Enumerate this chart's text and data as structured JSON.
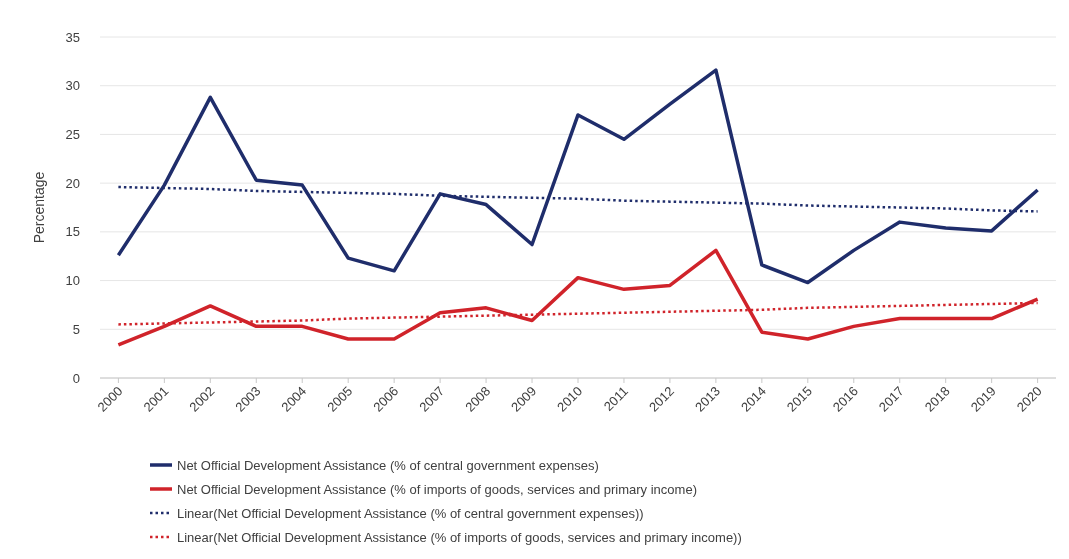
{
  "chart_data": {
    "type": "line",
    "ylabel": "Percentage",
    "x": [
      2000,
      2001,
      2002,
      2003,
      2004,
      2005,
      2006,
      2007,
      2008,
      2009,
      2010,
      2011,
      2012,
      2013,
      2014,
      2015,
      2016,
      2017,
      2018,
      2019,
      2020
    ],
    "xlim": [
      1999.6,
      2020.4
    ],
    "xticks": [
      2000,
      2001,
      2002,
      2003,
      2004,
      2005,
      2006,
      2007,
      2008,
      2009,
      2010,
      2011,
      2012,
      2013,
      2014,
      2015,
      2016,
      2017,
      2018,
      2019,
      2020
    ],
    "ylim": [
      0,
      35
    ],
    "yticks": [
      0,
      5,
      10,
      15,
      20,
      25,
      30,
      35
    ],
    "grid": "y",
    "legend": "bottom",
    "marker": "none",
    "series": [
      {
        "name": "Net Official Development Assistance (% of central government expenses)",
        "color": "#1f2d6b",
        "line_style": "solid",
        "values": [
          12.6,
          19.8,
          28.8,
          20.3,
          19.8,
          12.3,
          11.0,
          18.9,
          17.8,
          13.7,
          27.0,
          24.5,
          28.1,
          31.6,
          11.6,
          9.8,
          13.1,
          16.0,
          15.4,
          15.1,
          19.3
        ]
      },
      {
        "name": "Net Official Development Assistance (% of imports of goods, services and primary income)",
        "color": "#d0232a",
        "line_style": "solid",
        "values": [
          3.4,
          5.3,
          7.4,
          5.3,
          5.3,
          4.0,
          4.0,
          6.7,
          7.2,
          5.9,
          10.3,
          9.1,
          9.5,
          13.1,
          4.7,
          4.0,
          5.3,
          6.1,
          6.1,
          6.1,
          8.1
        ]
      },
      {
        "name": "Linear(Net Official Development Assistance (% of central government expenses))",
        "color": "#1f2d6b",
        "line_style": "dotted",
        "values": [
          19.6,
          19.5,
          19.4,
          19.2,
          19.1,
          19.0,
          18.9,
          18.7,
          18.6,
          18.5,
          18.4,
          18.2,
          18.1,
          18.0,
          17.9,
          17.7,
          17.6,
          17.5,
          17.4,
          17.2,
          17.1
        ]
      },
      {
        "name": "Linear(Net Official Development Assistance (% of imports of goods, services and primary income))",
        "color": "#d0232a",
        "line_style": "dotted",
        "values": [
          5.5,
          5.6,
          5.7,
          5.8,
          5.9,
          6.1,
          6.2,
          6.3,
          6.4,
          6.5,
          6.6,
          6.7,
          6.8,
          6.9,
          7.0,
          7.2,
          7.3,
          7.4,
          7.5,
          7.6,
          7.7
        ]
      }
    ]
  }
}
